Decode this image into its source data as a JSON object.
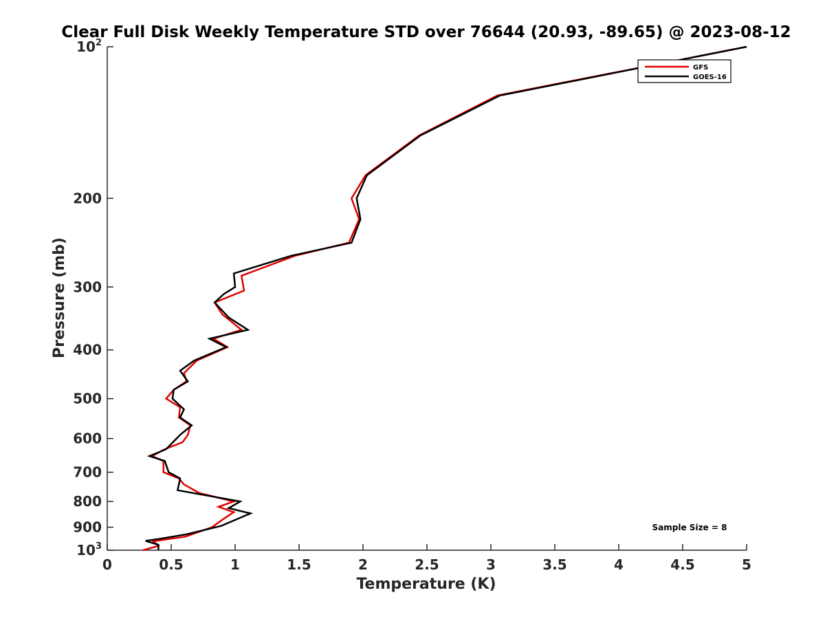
{
  "chart_data": {
    "type": "line",
    "title": "Clear Full Disk Weekly Temperature STD over 76644 (20.93, -89.65) @ 2023-08-12",
    "xlabel": "Temperature (K)",
    "ylabel": "Pressure (mb)",
    "xlim": [
      0,
      5
    ],
    "ylim": [
      100,
      1000
    ],
    "yscale": "log",
    "y_reversed": true,
    "x_ticks": [
      0,
      0.5,
      1,
      1.5,
      2,
      2.5,
      3,
      3.5,
      4,
      4.5,
      5
    ],
    "x_tick_labels": [
      "0",
      "0.5",
      "1",
      "1.5",
      "2",
      "2.5",
      "3",
      "3.5",
      "4",
      "4.5",
      "5"
    ],
    "y_ticks": [
      100,
      200,
      300,
      400,
      500,
      600,
      700,
      800,
      900,
      1000
    ],
    "y_tick_labels": [
      {
        "base": "10",
        "sup": "2"
      },
      {
        "base": "200",
        "sup": ""
      },
      {
        "base": "300",
        "sup": ""
      },
      {
        "base": "400",
        "sup": ""
      },
      {
        "base": "500",
        "sup": ""
      },
      {
        "base": "600",
        "sup": ""
      },
      {
        "base": "700",
        "sup": ""
      },
      {
        "base": "800",
        "sup": ""
      },
      {
        "base": "900",
        "sup": ""
      },
      {
        "base": "10",
        "sup": "3"
      }
    ],
    "legend_position": "top-right",
    "annotation": "Sample Size = 8",
    "series": [
      {
        "name": "GFS",
        "color": "#e00000",
        "points": [
          [
            5.0,
            100
          ],
          [
            3.05,
            125
          ],
          [
            2.44,
            150
          ],
          [
            2.02,
            180
          ],
          [
            1.91,
            200
          ],
          [
            1.97,
            220
          ],
          [
            1.89,
            245
          ],
          [
            1.47,
            260
          ],
          [
            1.05,
            285
          ],
          [
            1.07,
            305
          ],
          [
            0.84,
            322
          ],
          [
            0.9,
            340
          ],
          [
            1.05,
            365
          ],
          [
            0.83,
            380
          ],
          [
            0.94,
            395
          ],
          [
            0.7,
            420
          ],
          [
            0.6,
            445
          ],
          [
            0.62,
            462
          ],
          [
            0.52,
            480
          ],
          [
            0.46,
            500
          ],
          [
            0.57,
            520
          ],
          [
            0.56,
            545
          ],
          [
            0.65,
            565
          ],
          [
            0.63,
            590
          ],
          [
            0.59,
            610
          ],
          [
            0.45,
            630
          ],
          [
            0.35,
            650
          ],
          [
            0.44,
            665
          ],
          [
            0.44,
            700
          ],
          [
            0.56,
            720
          ],
          [
            0.6,
            740
          ],
          [
            0.72,
            770
          ],
          [
            0.99,
            800
          ],
          [
            0.87,
            820
          ],
          [
            0.99,
            840
          ],
          [
            0.9,
            870
          ],
          [
            0.82,
            900
          ],
          [
            0.61,
            940
          ],
          [
            0.36,
            960
          ],
          [
            0.4,
            980
          ],
          [
            0.28,
            1000
          ]
        ]
      },
      {
        "name": "GOES-16",
        "color": "#000000",
        "points": [
          [
            5.0,
            100
          ],
          [
            3.07,
            125
          ],
          [
            2.45,
            150
          ],
          [
            2.03,
            180
          ],
          [
            1.95,
            200
          ],
          [
            1.98,
            220
          ],
          [
            1.91,
            245
          ],
          [
            1.44,
            260
          ],
          [
            0.99,
            282
          ],
          [
            1.0,
            300
          ],
          [
            0.91,
            310
          ],
          [
            0.84,
            322
          ],
          [
            0.95,
            345
          ],
          [
            1.1,
            365
          ],
          [
            0.8,
            380
          ],
          [
            0.93,
            395
          ],
          [
            0.68,
            420
          ],
          [
            0.57,
            440
          ],
          [
            0.63,
            462
          ],
          [
            0.52,
            480
          ],
          [
            0.51,
            500
          ],
          [
            0.6,
            525
          ],
          [
            0.57,
            545
          ],
          [
            0.66,
            565
          ],
          [
            0.57,
            590
          ],
          [
            0.46,
            630
          ],
          [
            0.33,
            650
          ],
          [
            0.45,
            665
          ],
          [
            0.48,
            700
          ],
          [
            0.57,
            720
          ],
          [
            0.56,
            740
          ],
          [
            0.55,
            760
          ],
          [
            1.04,
            800
          ],
          [
            0.95,
            825
          ],
          [
            1.12,
            845
          ],
          [
            0.89,
            895
          ],
          [
            0.62,
            930
          ],
          [
            0.4,
            950
          ],
          [
            0.3,
            958
          ],
          [
            0.4,
            975
          ],
          [
            0.4,
            1000
          ]
        ]
      }
    ]
  }
}
